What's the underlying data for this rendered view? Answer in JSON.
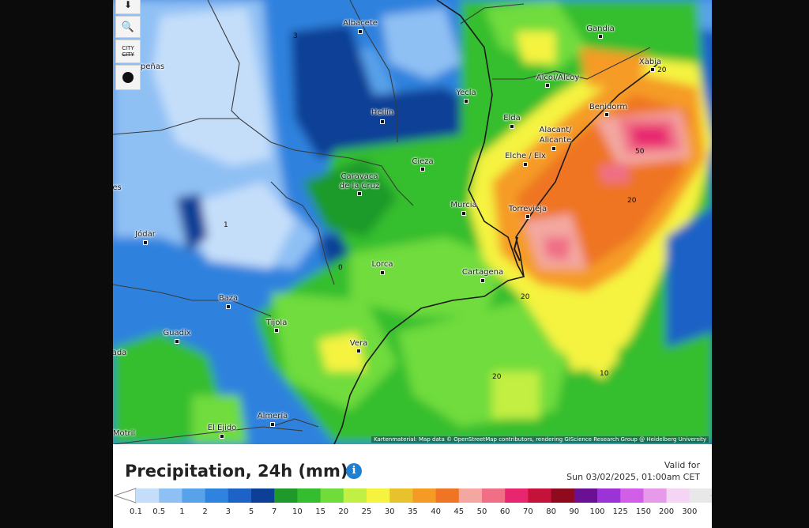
{
  "map": {
    "places": [
      "Albacete",
      "Gandia",
      "Xàbia",
      "Alcoi/Alcoy",
      "Benidorm",
      "Yecla",
      "Hellín",
      "Elda",
      "Alacant/",
      "Alicante",
      "Elche / Elx",
      "Cieza",
      "Caravaca",
      "de la Cruz",
      "Murcia",
      "Torrevieja",
      "Jódar",
      "Lorca",
      "Cartagena",
      "Baza",
      "Tíjola",
      "Guadix",
      "Vera",
      "Almería",
      "El Ejido",
      "Motril",
      "peñas",
      "es",
      "ada"
    ],
    "isolines": [
      "3",
      "20",
      "50",
      "20",
      "20",
      "20",
      "10",
      "1",
      "0"
    ],
    "attribution": "Kartenmaterial: Map data © OpenStreetMap contributors, rendering GIScience Research Group @ Heidelberg University"
  },
  "controls": {
    "download_icon": "download-icon",
    "zoom_icon": "zoom-in-icon",
    "city_label": "CITY",
    "city_sub": "CITY",
    "marker_icon": "dot-marker-icon"
  },
  "legend": {
    "title": "Precipitation, 24h (mm)",
    "info_icon": "i",
    "valid_for_label": "Valid for",
    "valid_datetime": "Sun 03/02/2025, 01:00am CET",
    "ticks": [
      "0.1",
      "0.5",
      "1",
      "2",
      "3",
      "5",
      "7",
      "10",
      "15",
      "20",
      "25",
      "30",
      "35",
      "40",
      "45",
      "50",
      "60",
      "70",
      "80",
      "90",
      "100",
      "125",
      "150",
      "200",
      "300"
    ],
    "colors": [
      "#c4defa",
      "#8fc0f4",
      "#58a2ea",
      "#2f82de",
      "#1d62c6",
      "#0d3f96",
      "#1f9a2a",
      "#34be2f",
      "#6fdc3c",
      "#c2ef43",
      "#f5f340",
      "#e8c22d",
      "#f59b25",
      "#ef7423",
      "#f3a7a0",
      "#f06e86",
      "#e8256f",
      "#c5123a",
      "#8f0a1d",
      "#6a1092",
      "#9c33d7",
      "#d05ee6",
      "#e69ae9",
      "#f4d6f4",
      "#e8e8e8",
      "#b8b8b8"
    ]
  }
}
